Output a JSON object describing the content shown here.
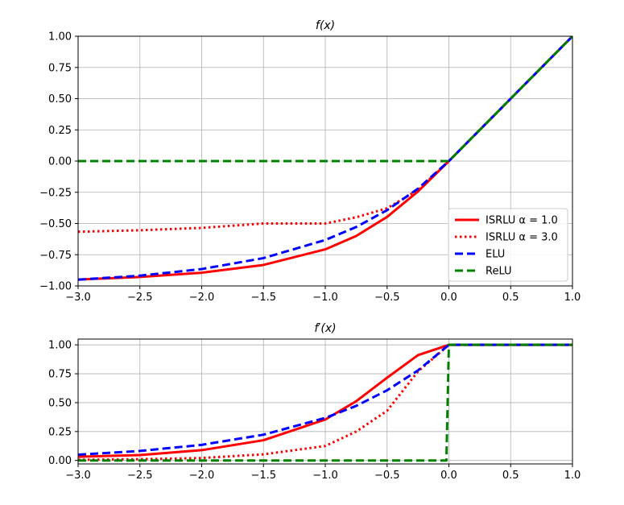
{
  "chart_data": [
    {
      "type": "line",
      "title": "f(x)",
      "xlim": [
        -3.0,
        1.0
      ],
      "ylim": [
        -1.0,
        1.0
      ],
      "xticks": [
        "−3.0",
        "−2.5",
        "−2.0",
        "−1.5",
        "−1.0",
        "−0.5",
        "0.0",
        "0.5",
        "1.0"
      ],
      "yticks": [
        "−1.00",
        "−0.75",
        "−0.50",
        "−0.25",
        "0.00",
        "0.25",
        "0.50",
        "0.75",
        "1.00"
      ],
      "grid": true,
      "legend_location": "lower-right",
      "series": [
        {
          "name": "ISRLU α = 1.0",
          "color": "#ff0000",
          "style": "solid",
          "x": [
            -3.0,
            -2.5,
            -2.0,
            -1.5,
            -1.0,
            -0.75,
            -0.5,
            -0.25,
            0.0,
            0.5,
            1.0
          ],
          "y": [
            -0.949,
            -0.928,
            -0.894,
            -0.832,
            -0.707,
            -0.6,
            -0.447,
            -0.243,
            0.0,
            0.5,
            1.0
          ]
        },
        {
          "name": "ISRLU α = 3.0",
          "color": "#ff0000",
          "style": "dotted",
          "x": [
            -3.0,
            -2.5,
            -2.0,
            -1.5,
            -1.0,
            -0.75,
            -0.5,
            -0.25,
            0.0,
            0.5,
            1.0
          ],
          "y": [
            -0.566,
            -0.554,
            -0.535,
            -0.5,
            -0.5,
            -0.45,
            -0.378,
            -0.231,
            0.0,
            0.5,
            1.0
          ]
        },
        {
          "name": "ELU",
          "color": "#0000ff",
          "style": "dashed",
          "x": [
            -3.0,
            -2.5,
            -2.0,
            -1.5,
            -1.0,
            -0.75,
            -0.5,
            -0.25,
            0.0,
            0.5,
            1.0
          ],
          "y": [
            -0.95,
            -0.918,
            -0.865,
            -0.777,
            -0.632,
            -0.528,
            -0.393,
            -0.221,
            0.0,
            0.5,
            1.0
          ]
        },
        {
          "name": "ReLU",
          "color": "#008000",
          "style": "dashed",
          "x": [
            -3.0,
            0.0,
            0.5,
            1.0
          ],
          "y": [
            0.0,
            0.0,
            0.5,
            1.0
          ]
        }
      ],
      "legend": [
        {
          "label": "ISRLU α = 1.0",
          "color": "#ff0000",
          "style": "solid"
        },
        {
          "label": "ISRLU α = 3.0",
          "color": "#ff0000",
          "style": "dotted"
        },
        {
          "label": "ELU",
          "color": "#0000ff",
          "style": "dashed"
        },
        {
          "label": "ReLU",
          "color": "#008000",
          "style": "dashed"
        }
      ]
    },
    {
      "type": "line",
      "title": "f′(x)",
      "xlim": [
        -3.0,
        1.0
      ],
      "ylim": [
        -0.03,
        1.05
      ],
      "xticks": [
        "−3.0",
        "−2.5",
        "−2.0",
        "−1.5",
        "−1.0",
        "−0.5",
        "0.0",
        "0.5",
        "1.0"
      ],
      "yticks": [
        "0.00",
        "0.25",
        "0.50",
        "0.75",
        "1.00"
      ],
      "grid": true,
      "series": [
        {
          "name": "ISRLU α = 1.0",
          "color": "#ff0000",
          "style": "solid",
          "x": [
            -3.0,
            -2.5,
            -2.0,
            -1.5,
            -1.0,
            -0.75,
            -0.5,
            -0.25,
            0.0,
            0.5,
            1.0
          ],
          "y": [
            0.032,
            0.047,
            0.089,
            0.175,
            0.354,
            0.512,
            0.716,
            0.911,
            1.0,
            1.0,
            1.0
          ]
        },
        {
          "name": "ISRLU α = 3.0",
          "color": "#ff0000",
          "style": "dotted",
          "x": [
            -3.0,
            -2.5,
            -2.0,
            -1.5,
            -1.0,
            -0.75,
            -0.5,
            -0.25,
            0.0,
            0.5,
            1.0
          ],
          "y": [
            0.006,
            0.011,
            0.021,
            0.053,
            0.125,
            0.25,
            0.43,
            0.77,
            1.0,
            1.0,
            1.0
          ]
        },
        {
          "name": "ELU",
          "color": "#0000ff",
          "style": "dashed",
          "x": [
            -3.0,
            -2.5,
            -2.0,
            -1.5,
            -1.0,
            -0.75,
            -0.5,
            -0.25,
            0.0,
            0.5,
            1.0
          ],
          "y": [
            0.05,
            0.082,
            0.135,
            0.223,
            0.368,
            0.472,
            0.607,
            0.779,
            1.0,
            1.0,
            1.0
          ]
        },
        {
          "name": "ReLU",
          "color": "#008000",
          "style": "dashed",
          "x": [
            -3.0,
            -0.02,
            0.0,
            0.5,
            1.0
          ],
          "y": [
            0.0,
            0.0,
            1.0,
            1.0,
            1.0
          ]
        }
      ]
    }
  ]
}
